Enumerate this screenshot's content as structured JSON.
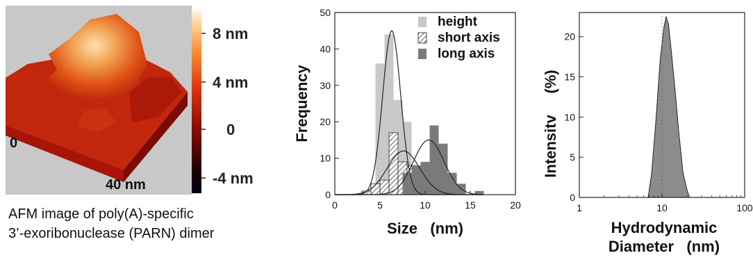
{
  "afm": {
    "scale_labels": [
      "8 nm",
      "4 nm",
      "0",
      "-4 nm"
    ],
    "scale_values": [
      8,
      4,
      0,
      -4
    ],
    "origin_label": "0",
    "size_label": "40 nm",
    "caption_line1": "AFM image of poly(A)-specific",
    "caption_line2": "3’-exoribonuclease (PARN) dimer",
    "colors": {
      "background": "#c8c8c8",
      "base_dark": "#a01208",
      "peak": "#ffe0b0"
    }
  },
  "chart_data": [
    {
      "type": "bar",
      "xlabel": "Size   (nm)",
      "ylabel": "Frequency",
      "xlim": [
        0,
        20
      ],
      "ylim": [
        0,
        50
      ],
      "xticks": [
        0,
        5,
        10,
        15,
        20
      ],
      "yticks": [
        0,
        10,
        20,
        30,
        40,
        50
      ],
      "legend_position": "top-right",
      "series": [
        {
          "name": "height",
          "color": "#c8c8c8",
          "x": [
            4,
            5,
            6,
            7,
            8,
            9,
            10
          ],
          "values": [
            1,
            36,
            44,
            26,
            20,
            4,
            2
          ],
          "fit_peak": [
            6.3,
            45
          ],
          "fit_sigma": 1.0
        },
        {
          "name": "short axis",
          "color": "hatched",
          "x": [
            3.5,
            4.5,
            5.5,
            6.5,
            7.5,
            8.5,
            9.5,
            10.5,
            11.5
          ],
          "values": [
            1,
            3,
            4,
            17,
            9,
            8,
            4,
            2,
            1
          ],
          "fit_peak": [
            7.6,
            12
          ],
          "fit_sigma": 1.8
        },
        {
          "name": "long axis",
          "color": "#7a7a7a",
          "x": [
            8,
            9,
            10,
            11,
            12,
            13,
            14,
            16
          ],
          "values": [
            6,
            8,
            9,
            19,
            14,
            6,
            3,
            1
          ],
          "fit_peak": [
            10.4,
            15
          ],
          "fit_sigma": 1.7
        }
      ]
    },
    {
      "type": "area",
      "xlabel_line1": "Hydrodynamic",
      "xlabel_line2": "Diameter   (nm)",
      "ylabel": "Intensitv     (%)",
      "xscale": "log",
      "xlim": [
        1,
        100
      ],
      "ylim": [
        0,
        23
      ],
      "xticks": [
        1,
        10,
        100
      ],
      "yticks": [
        0,
        5,
        10,
        15,
        20
      ],
      "color": "#8c8c8c",
      "x": [
        6.8,
        7.5,
        8.5,
        9.5,
        10.5,
        11.2,
        12,
        13,
        14.5,
        16,
        18,
        20,
        21.5
      ],
      "values": [
        0,
        3,
        10,
        17,
        21,
        22.5,
        21.5,
        18,
        13,
        8,
        3,
        1,
        0
      ]
    }
  ]
}
